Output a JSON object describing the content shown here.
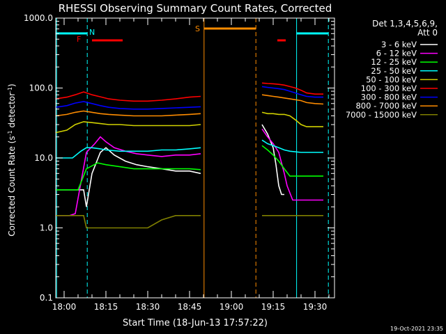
{
  "chart_data": {
    "type": "line",
    "title": "RHESSI Observing Summary Count Rates, Corrected",
    "xlabel": "Start Time (18-Jun-13 17:57:22)",
    "ylabel_main": "Corrected Count Rate (s",
    "ylabel_sup": "-1",
    "ylabel_tail": " detector",
    "ylabel_end": ")",
    "y_scale": "log",
    "ylim": [
      0.1,
      1000.0
    ],
    "xlim_minutes": [
      -3.0,
      97.0
    ],
    "x_ticks": [
      {
        "label": "18:00",
        "minutes": 0
      },
      {
        "label": "18:15",
        "minutes": 15
      },
      {
        "label": "18:30",
        "minutes": 30
      },
      {
        "label": "18:45",
        "minutes": 45
      },
      {
        "label": "19:00",
        "minutes": 60
      },
      {
        "label": "19:15",
        "minutes": 75
      },
      {
        "label": "19:30",
        "minutes": 90
      }
    ],
    "y_ticks": [
      {
        "label": "1000.0",
        "value": 1000
      },
      {
        "label": "100.0",
        "value": 100
      },
      {
        "label": "10.0",
        "value": 10
      },
      {
        "label": "1.0",
        "value": 1
      },
      {
        "label": "0.1",
        "value": 0.1
      }
    ],
    "legend_header": [
      "Det 1,3,4,5,6,9,",
      "Att 0"
    ],
    "legend_position": "right",
    "timestamp": "19-Oct-2021 23:35",
    "series": [
      {
        "name": "3 - 6 keV",
        "color": "#ffffff",
        "segments": [
          {
            "x": [
              -3,
              5,
              7,
              8,
              10,
              13,
              15,
              18,
              22,
              26,
              30,
              35,
              40,
              45,
              49
            ],
            "y": [
              3.5,
              3.5,
              3.5,
              2.0,
              6.0,
              12.0,
              14.0,
              11.0,
              9.0,
              8.0,
              7.5,
              7.0,
              6.5,
              6.5,
              6.0
            ]
          },
          {
            "x": [
              71,
              73,
              75,
              76,
              77,
              78,
              79
            ],
            "y": [
              30,
              22,
              14,
              8,
              4,
              3,
              3
            ]
          }
        ]
      },
      {
        "name": "6 - 12 keV",
        "color": "#ff00ff",
        "segments": [
          {
            "x": [
              -3,
              1,
              2,
              4,
              8,
              11,
              13,
              15,
              18,
              22,
              26,
              30,
              35,
              40,
              45,
              49
            ],
            "y": [
              1.5,
              1.5,
              1.5,
              1.6,
              12.0,
              16.0,
              20.0,
              17.0,
              14.0,
              12.5,
              11.5,
              11.0,
              10.5,
              11.0,
              11.0,
              11.5
            ]
          },
          {
            "x": [
              71,
              73,
              75,
              77,
              79,
              80,
              82,
              85,
              90,
              93
            ],
            "y": [
              26,
              20,
              16,
              12,
              6,
              4,
              2.5,
              2.5,
              2.5,
              2.5
            ]
          }
        ]
      },
      {
        "name": "12 - 25 keV",
        "color": "#00ff00",
        "segments": [
          {
            "x": [
              -3,
              5,
              8,
              12,
              15,
              20,
              25,
              30,
              35,
              40,
              45,
              49
            ],
            "y": [
              3.5,
              3.5,
              7.0,
              8.5,
              8.0,
              7.5,
              7.0,
              7.0,
              7.0,
              7.0,
              7.0,
              6.8
            ]
          },
          {
            "x": [
              71,
              73,
              75,
              77,
              79,
              81,
              85,
              90,
              93
            ],
            "y": [
              15,
              13,
              11,
              9,
              7,
              5.5,
              5.5,
              5.5,
              5.5
            ]
          }
        ]
      },
      {
        "name": "25 - 50 keV",
        "color": "#00ffff",
        "segments": [
          {
            "x": [
              -3,
              3,
              6,
              8,
              10,
              13,
              15,
              20,
              25,
              30,
              35,
              40,
              45,
              49
            ],
            "y": [
              10.0,
              10.0,
              12.5,
              14.0,
              14.0,
              13.5,
              13.0,
              12.5,
              12.5,
              12.5,
              13.0,
              13.0,
              13.5,
              14.0
            ]
          },
          {
            "x": [
              71,
              73,
              75,
              77,
              79,
              81,
              85,
              90,
              93
            ],
            "y": [
              18,
              16,
              15,
              14,
              13,
              12.5,
              12,
              12,
              12
            ]
          }
        ]
      },
      {
        "name": "50 - 100 keV",
        "color": "#d2d200",
        "segments": [
          {
            "x": [
              -3,
              1,
              4,
              7,
              10,
              13,
              16,
              20,
              25,
              30,
              35,
              40,
              45,
              49
            ],
            "y": [
              23,
              25,
              30,
              33,
              32,
              31,
              30,
              30,
              29,
              29,
              29,
              29,
              29,
              30
            ]
          },
          {
            "x": [
              71,
              73,
              75,
              77,
              79,
              81,
              83,
              85,
              87,
              90,
              93
            ],
            "y": [
              45,
              43,
              43,
              42,
              42,
              40,
              35,
              30,
              28,
              28,
              28
            ]
          }
        ]
      },
      {
        "name": "100 - 300 keV",
        "color": "#ff0000",
        "segments": [
          {
            "x": [
              -3,
              1,
              4,
              7,
              10,
              13,
              16,
              20,
              25,
              30,
              35,
              40,
              45,
              49
            ],
            "y": [
              70,
              74,
              80,
              88,
              80,
              75,
              70,
              67,
              65,
              65,
              67,
              70,
              74,
              76
            ]
          },
          {
            "x": [
              71,
              73,
              75,
              77,
              79,
              81,
              83,
              85,
              87,
              90,
              93
            ],
            "y": [
              118,
              116,
              115,
              113,
              110,
              105,
              100,
              93,
              85,
              82,
              82
            ]
          }
        ]
      },
      {
        "name": "300 - 800 keV",
        "color": "#0000ff",
        "segments": [
          {
            "x": [
              -3,
              1,
              4,
              7,
              10,
              13,
              16,
              20,
              25,
              30,
              35,
              40,
              45,
              49
            ],
            "y": [
              53,
              56,
              61,
              64,
              60,
              56,
              53,
              51,
              50,
              50,
              51,
              52,
              53,
              54
            ]
          },
          {
            "x": [
              71,
              73,
              75,
              77,
              79,
              81,
              83,
              85,
              87,
              90,
              93
            ],
            "y": [
              105,
              102,
              100,
              98,
              95,
              90,
              85,
              80,
              76,
              74,
              74
            ]
          }
        ]
      },
      {
        "name": "800 - 7000 keV",
        "color": "#ff8c00",
        "segments": [
          {
            "x": [
              -3,
              1,
              4,
              7,
              10,
              13,
              16,
              20,
              25,
              30,
              35,
              40,
              45,
              49
            ],
            "y": [
              40,
              42,
              45,
              47,
              45,
              43,
              42,
              41,
              40,
              40,
              40,
              41,
              42,
              43
            ]
          },
          {
            "x": [
              71,
              73,
              75,
              77,
              79,
              81,
              83,
              85,
              87,
              90,
              93
            ],
            "y": [
              80,
              78,
              76,
              74,
              72,
              70,
              68,
              66,
              62,
              60,
              59
            ]
          }
        ]
      },
      {
        "name": "7000 - 15000 keV",
        "color": "#808000",
        "segments": [
          {
            "x": [
              -3,
              6,
              7,
              8,
              15,
              20,
              30,
              35,
              40,
              45,
              49
            ],
            "y": [
              1.5,
              1.5,
              1.5,
              1.0,
              1.0,
              1.0,
              1.0,
              1.3,
              1.5,
              1.5,
              1.5
            ]
          },
          {
            "x": [
              71,
              75,
              80,
              85,
              90,
              93
            ],
            "y": [
              1.5,
              1.5,
              1.5,
              1.5,
              1.5,
              1.5
            ]
          }
        ]
      }
    ],
    "annotations": [
      {
        "label": "N",
        "color": "#00ffff",
        "minutes": 8
      },
      {
        "label": "F",
        "color": "#ff0000",
        "minutes": 7
      },
      {
        "label": "S",
        "color": "#ff8c00",
        "minutes": 50
      }
    ],
    "vertical_markers": [
      {
        "minutes": -2.7,
        "color": "#00ffff",
        "style": "solid"
      },
      {
        "minutes": 8.3,
        "color": "#00ffff",
        "style": "dashed"
      },
      {
        "minutes": 50.2,
        "color": "#ff8c00",
        "style": "solid"
      },
      {
        "minutes": 68.8,
        "color": "#ff8c00",
        "style": "dashed"
      },
      {
        "minutes": 83.4,
        "color": "#00ffff",
        "style": "solid"
      },
      {
        "minutes": 94.8,
        "color": "#00ffff",
        "style": "dashed"
      }
    ],
    "status_bars": [
      {
        "color": "#00ffff",
        "from": -3,
        "to": 8.3
      },
      {
        "color": "#ff0000",
        "from": 10,
        "to": 21
      },
      {
        "color": "#ff8c00",
        "from": 50.2,
        "to": 68.8
      },
      {
        "color": "#ff0000",
        "from": 76.5,
        "to": 79.5
      },
      {
        "color": "#00ffff",
        "from": 83.4,
        "to": 94.8
      }
    ]
  }
}
